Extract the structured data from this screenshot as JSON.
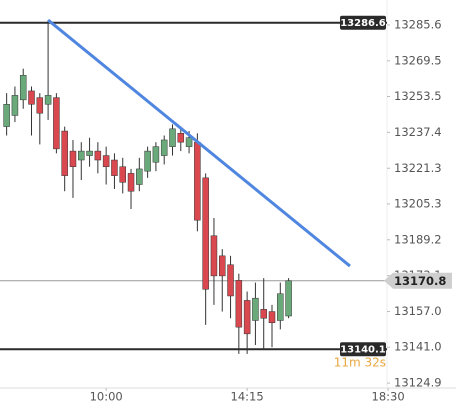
{
  "chart_data": {
    "type": "candlestick",
    "x": [
      420,
      435,
      450,
      465,
      480,
      495,
      510,
      525,
      540,
      555,
      570,
      585,
      600,
      615,
      630,
      645,
      660,
      675,
      690,
      705,
      720,
      735,
      750,
      765,
      780,
      795,
      810,
      825,
      840,
      855,
      870,
      885,
      900,
      915,
      930
    ],
    "open": [
      13240,
      13245,
      13252,
      13256,
      13253,
      13250,
      13253,
      13238,
      13229,
      13225,
      13227,
      13229,
      13227,
      13225,
      13222,
      13219,
      13214,
      13220,
      13224,
      13227,
      13231,
      13237,
      13231,
      13233,
      13217,
      13191,
      13182,
      13178,
      13171,
      13162,
      13153,
      13158,
      13157,
      13153,
      13155
    ],
    "high": [
      13255,
      13258,
      13266,
      13258,
      13255,
      13287.8,
      13255,
      13240,
      13234,
      13233,
      13235,
      13233,
      13231,
      13228,
      13226,
      13221,
      13226,
      13231,
      13233,
      13236,
      13241,
      13240,
      13238,
      13237,
      13219,
      13199,
      13185,
      13182,
      13174,
      13166,
      13170,
      13172,
      13160,
      13170,
      13172
    ],
    "low": [
      13236,
      13242,
      13248,
      13236,
      13232,
      13243,
      13228,
      13211,
      13208,
      13216,
      13222,
      13219,
      13214,
      13212,
      13210,
      13203,
      13211,
      13217,
      13220,
      13223,
      13227,
      13229,
      13228,
      13193,
      13151,
      13160,
      13157,
      13154,
      13138,
      13138,
      13142,
      13140,
      13141,
      13149,
      13154
    ],
    "close": [
      13250,
      13254,
      13263,
      13250,
      13246,
      13254,
      13230,
      13218,
      13222,
      13229,
      13229,
      13225,
      13222,
      13218,
      13215,
      13211,
      13221,
      13229,
      13231,
      13234,
      13239,
      13233,
      13235,
      13198,
      13167,
      13173,
      13173,
      13164,
      13150,
      13147,
      13163,
      13154,
      13152,
      13165,
      13170.8
    ],
    "up_color": "#6aa97a",
    "down_color": "#d9474f",
    "xlim": [
      408,
      1108
    ],
    "xticks": [
      {
        "value": 600,
        "label": "10:00"
      },
      {
        "value": 855,
        "label": "14:15"
      },
      {
        "value": 1110,
        "label": "18:30"
      }
    ],
    "ylim": [
      13122.7,
      13296.8
    ],
    "yticks": [
      13285.6,
      13269.5,
      13253.5,
      13237.4,
      13221.3,
      13205.3,
      13189.2,
      13173.1,
      {
        "value": 13157.0,
        "label": "13157.0"
      },
      {
        "value": 13141.0,
        "label": "13141.0"
      },
      13124.9
    ],
    "levels": [
      {
        "value": 13286.6,
        "color": "#2a2a2a"
      },
      {
        "value": 13140.1,
        "color": "#2a2a2a"
      }
    ],
    "last_price": 13170.8,
    "countdown": "11m 32s",
    "trendline": {
      "x": [
        495,
        1041
      ],
      "values": [
        13287.8,
        13177.4
      ],
      "color": "#4f86e0"
    }
  }
}
